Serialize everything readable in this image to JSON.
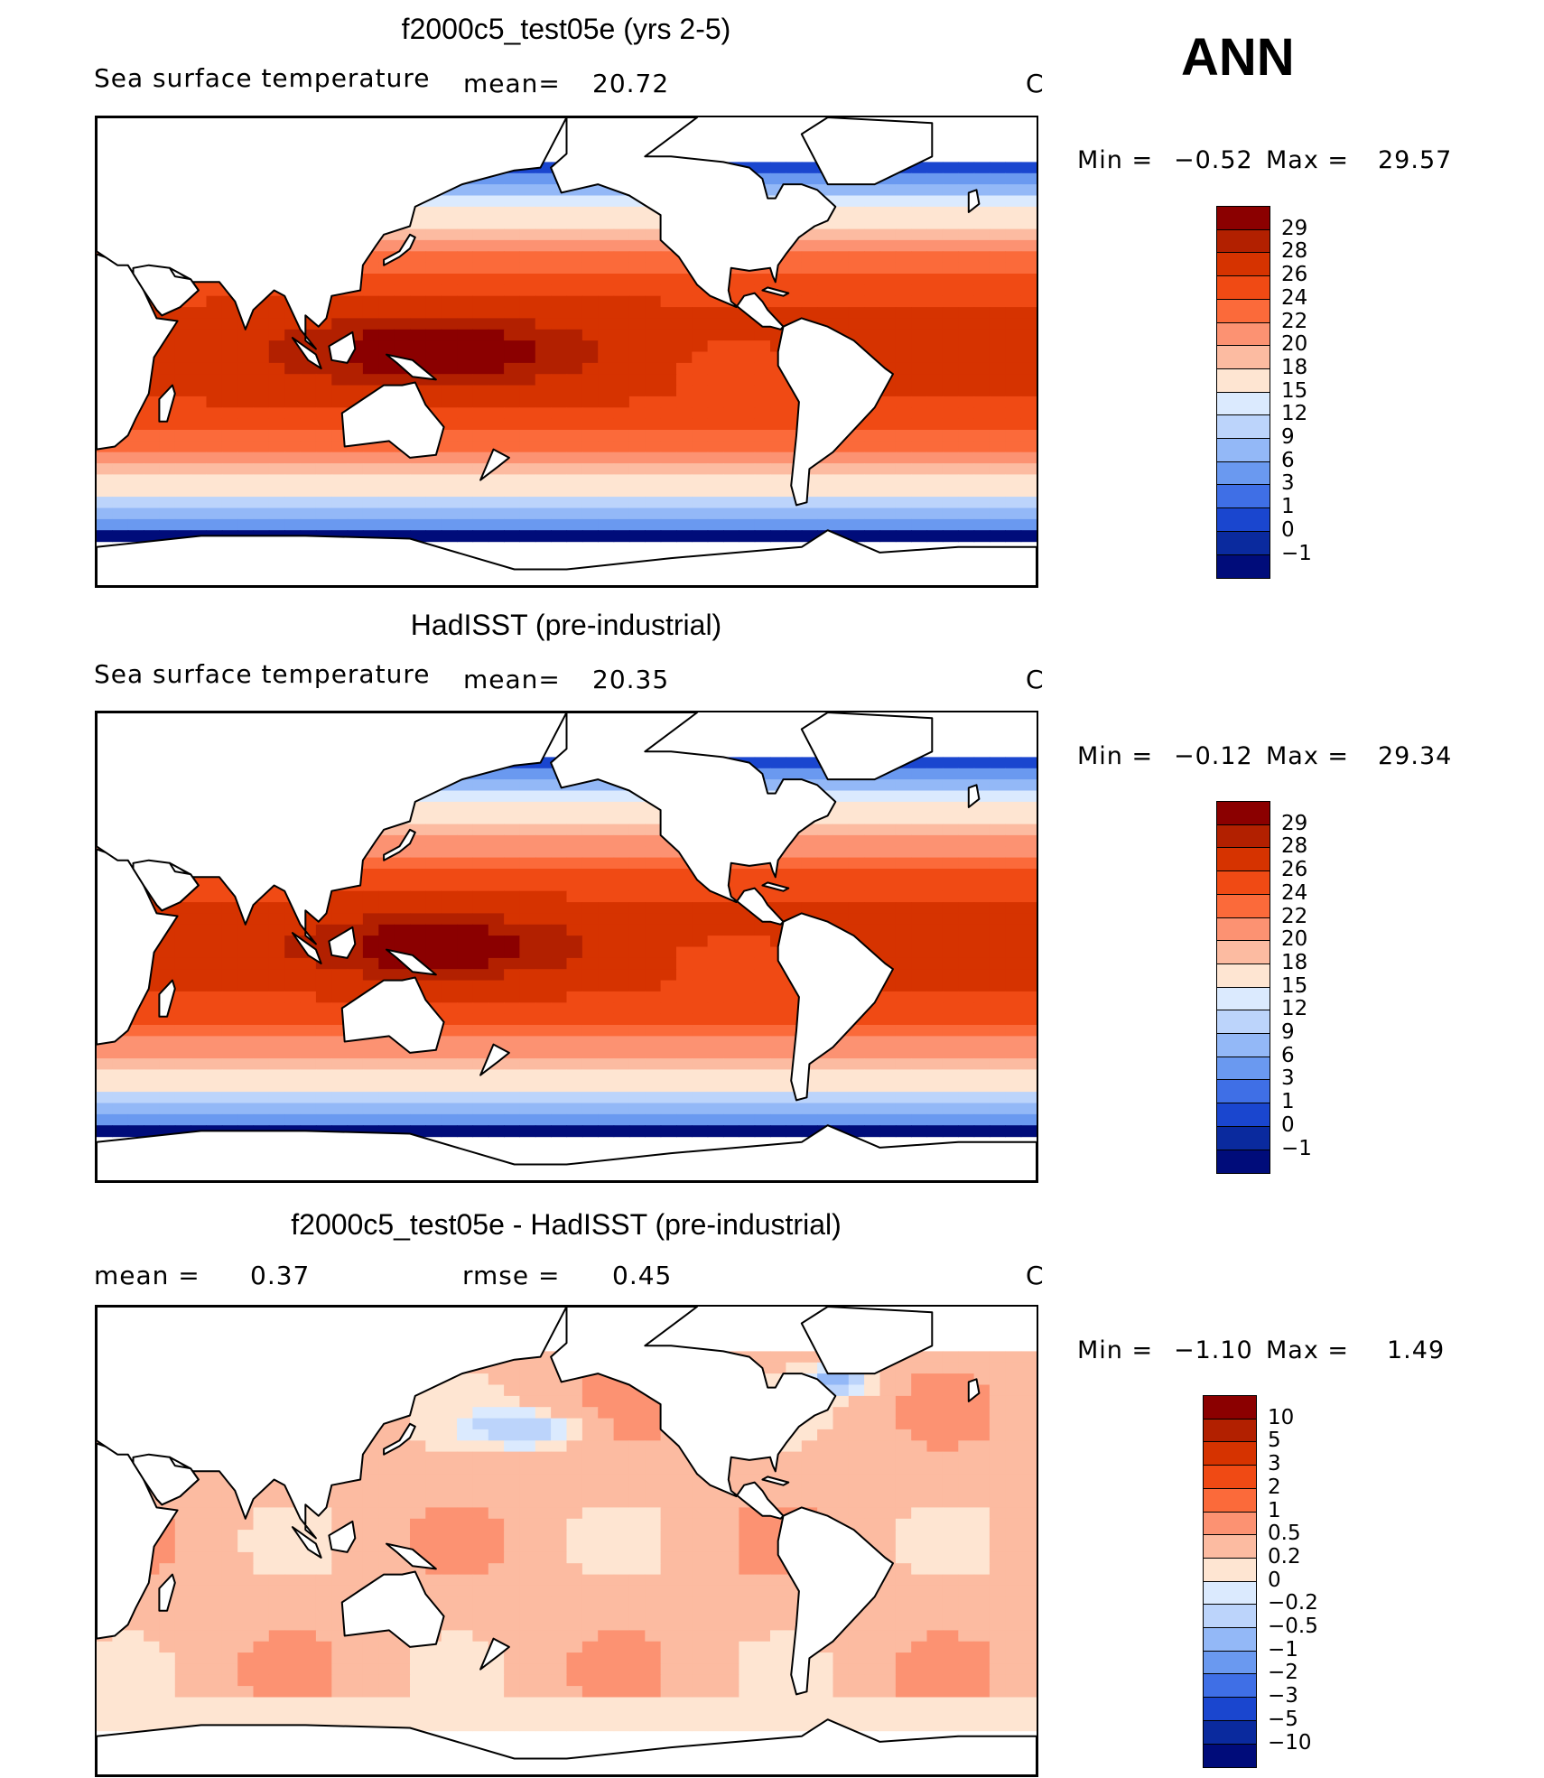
{
  "season": "ANN",
  "panels": [
    {
      "title": "f2000c5_test05e (yrs 2-5)",
      "subtitle": "Sea surface temperature",
      "stat1_label": "mean=",
      "stat1_value": "20.72",
      "stat2_label": "",
      "stat2_value": "",
      "units": "C",
      "min_label": "Min =",
      "min_value": "−0.52",
      "max_label": "Max =",
      "max_value": "29.57",
      "kind": "sst",
      "equator_peak": 29.57,
      "colorbar_labels": [
        "29",
        "28",
        "26",
        "24",
        "22",
        "20",
        "18",
        "15",
        "12",
        "9",
        "6",
        "3",
        "1",
        "0",
        "−1"
      ]
    },
    {
      "title": "HadISST (pre-industrial)",
      "subtitle": "Sea surface temperature",
      "stat1_label": "mean=",
      "stat1_value": "20.35",
      "stat2_label": "",
      "stat2_value": "",
      "units": "C",
      "min_label": "Min =",
      "min_value": "−0.12",
      "max_label": "Max =",
      "max_value": "29.34",
      "kind": "sst",
      "equator_peak": 29.34,
      "colorbar_labels": [
        "29",
        "28",
        "26",
        "24",
        "22",
        "20",
        "18",
        "15",
        "12",
        "9",
        "6",
        "3",
        "1",
        "0",
        "−1"
      ]
    },
    {
      "title": "f2000c5_test05e - HadISST (pre-industrial)",
      "subtitle": "",
      "stat1_label": "mean =",
      "stat1_value": "0.37",
      "stat2_label": "rmse =",
      "stat2_value": "0.45",
      "units": "C",
      "min_label": "Min =",
      "min_value": "−1.10",
      "max_label": "Max =",
      "max_value": "1.49",
      "kind": "diff",
      "equator_peak": 0.4,
      "colorbar_labels": [
        "10",
        "5",
        "3",
        "2",
        "1",
        "0.5",
        "0.2",
        "0",
        "−0.2",
        "−0.5",
        "−1",
        "−2",
        "−3",
        "−5",
        "−10"
      ]
    }
  ],
  "sst_colors": [
    "#8b0000",
    "#b22000",
    "#d63300",
    "#f04a14",
    "#fb6a3a",
    "#fc9272",
    "#fcbba1",
    "#fee5d2",
    "#dbeafe",
    "#bcd4fb",
    "#93b8f7",
    "#6a99f0",
    "#3f6fe6",
    "#1a46cf",
    "#0a2a9e",
    "#000c7a"
  ],
  "diff_colors": [
    "#8b0000",
    "#b22000",
    "#d63300",
    "#f04a14",
    "#fb6a3a",
    "#fc9272",
    "#fcbba1",
    "#fee5d2",
    "#dbeafe",
    "#bcd4fb",
    "#93b8f7",
    "#6a99f0",
    "#3f6fe6",
    "#1a46cf",
    "#0a2a9e",
    "#000c7a"
  ]
}
